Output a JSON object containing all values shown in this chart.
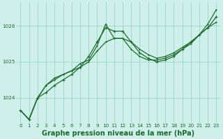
{
  "title": "Graphe pression niveau de la mer (hPa)",
  "bg_color": "#cff0ea",
  "grid_color": "#9fd8cc",
  "line_color": "#1a6b2a",
  "x": [
    0,
    1,
    2,
    3,
    4,
    5,
    6,
    7,
    8,
    9,
    10,
    11,
    12,
    13,
    14,
    15,
    16,
    17,
    18,
    19,
    20,
    21,
    22,
    23
  ],
  "line1": [
    1023.65,
    1023.4,
    1024.0,
    1024.15,
    1024.35,
    1024.5,
    1024.65,
    1024.85,
    1025.15,
    1025.55,
    1025.95,
    1025.85,
    1025.85,
    1025.55,
    1025.25,
    1025.1,
    1025.0,
    1025.05,
    1025.15,
    1025.35,
    1025.55,
    1025.75,
    1025.95,
    1026.25
  ],
  "line2": [
    1023.65,
    1023.4,
    1024.0,
    1024.35,
    1024.5,
    1024.65,
    1024.75,
    1024.95,
    1025.05,
    1025.45,
    1026.05,
    1025.65,
    1025.65,
    1025.35,
    1025.15,
    1025.05,
    1025.05,
    1025.1,
    1025.2,
    1025.35,
    1025.5,
    1025.75,
    1025.95,
    1026.1
  ],
  "line3": [
    1023.65,
    1023.4,
    1024.0,
    1024.35,
    1024.55,
    1024.65,
    1024.75,
    1024.85,
    1025.0,
    1025.3,
    1025.55,
    1025.65,
    1025.65,
    1025.55,
    1025.35,
    1025.2,
    1025.1,
    1025.15,
    1025.25,
    1025.4,
    1025.55,
    1025.75,
    1026.05,
    1026.45
  ],
  "ylim": [
    1023.3,
    1026.65
  ],
  "yticks": [
    1024,
    1025,
    1026
  ],
  "xticks": [
    0,
    1,
    2,
    3,
    4,
    5,
    6,
    7,
    8,
    9,
    10,
    11,
    12,
    13,
    14,
    15,
    16,
    17,
    18,
    19,
    20,
    21,
    22,
    23
  ],
  "title_fontsize": 7.0,
  "tick_fontsize": 5.2,
  "lw": 0.9,
  "ms": 2.8
}
